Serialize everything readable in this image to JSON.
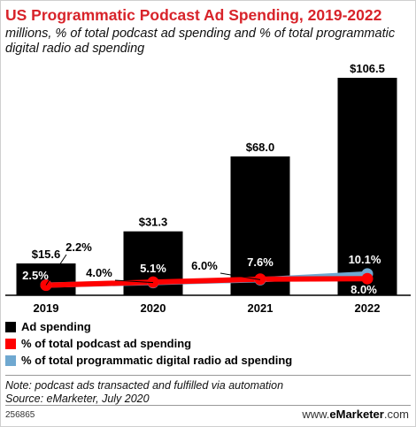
{
  "title": "US Programmatic Podcast Ad Spending, 2019-2022",
  "subtitle": "millions, % of total podcast ad spending and % of total programmatic digital radio ad spending",
  "legend": {
    "ad_spending": "Ad spending",
    "pct_podcast": "% of total podcast ad spending",
    "pct_radio": "% of total programmatic digital radio ad spending"
  },
  "note": {
    "line1": "Note: podcast ads transacted and fulfilled via automation",
    "line2": "Source: eMarketer, July 2020"
  },
  "chart_id": "256865",
  "brand": {
    "prefix": "www.",
    "name": "eMarketer",
    "suffix": ".com"
  },
  "colors": {
    "bar": "#000000",
    "podcast_line": "#ff0000",
    "radio_line": "#6fa8d0",
    "title": "#d8232a"
  },
  "chart_data": {
    "type": "bar",
    "categories": [
      "2019",
      "2020",
      "2021",
      "2022"
    ],
    "series": [
      {
        "name": "Ad spending",
        "values": [
          15.6,
          31.3,
          68.0,
          106.5
        ],
        "labels": [
          "$15.6",
          "$31.3",
          "$68.0",
          "$106.5"
        ]
      },
      {
        "name": "% of total podcast ad spending",
        "values": [
          2.5,
          5.1,
          7.6,
          8.0
        ],
        "labels": [
          "2.5%",
          "5.1%",
          "7.6%",
          "8.0%"
        ]
      },
      {
        "name": "% of total programmatic digital radio ad spending",
        "values": [
          2.2,
          4.0,
          6.0,
          10.1
        ],
        "labels": [
          "2.2%",
          "4.0%",
          "6.0%",
          "10.1%"
        ]
      }
    ],
    "legend_position": "bottom"
  }
}
